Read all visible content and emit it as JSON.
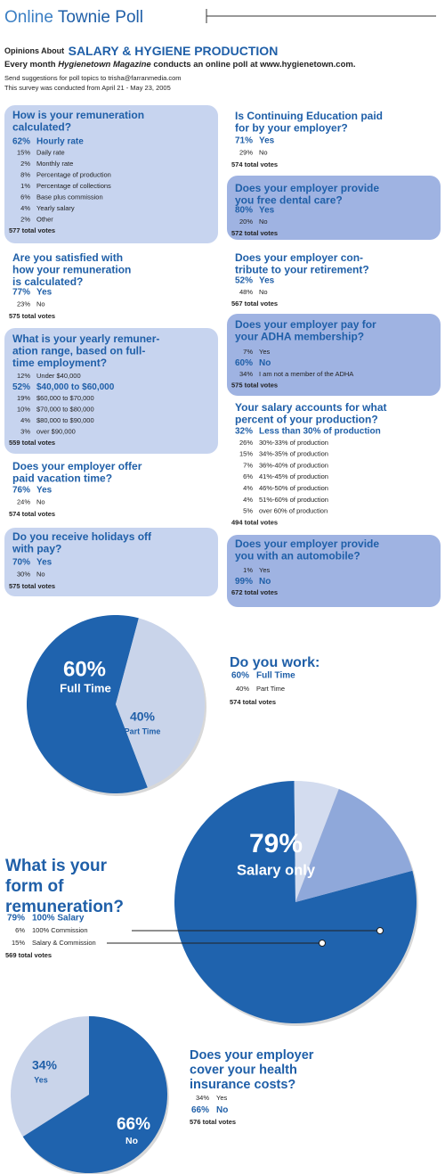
{
  "header": {
    "title_part1": "Online",
    "title_part2": "Townie Poll",
    "opinions_prefix": "Opinions About",
    "opinions_topic": "SALARY & HYGIENE PRODUCTION",
    "intro_part1": "Every month",
    "intro_part2": "Hygienetown Magazine",
    "intro_part3": "conducts an online poll at www.hygienetown.com.",
    "send": "Send suggestions for poll topics to trisha@farranmedia.com",
    "survey": "This survey was conducted from April 21 - May 23, 2005"
  },
  "polls": [
    {
      "question_lines": [
        "How is your remuneration",
        "calculated?"
      ],
      "options": [
        {
          "percent": "62%",
          "label": "Hourly rate",
          "highlight": true
        },
        {
          "percent": "15%",
          "label": "Daily rate"
        },
        {
          "percent": "2%",
          "label": "Monthly rate"
        },
        {
          "percent": "8%",
          "label": "Percentage of production"
        },
        {
          "percent": "1%",
          "label": "Percentage of collections"
        },
        {
          "percent": "6%",
          "label": "Base plus commission"
        },
        {
          "percent": "4%",
          "label": "Yearly salary"
        },
        {
          "percent": "2%",
          "label": "Other"
        }
      ],
      "total": "577 total votes"
    },
    {
      "question_lines": [
        "Are you satisfied with",
        "how your remuneration",
        "is calculated?"
      ],
      "options": [
        {
          "percent": "77%",
          "label": "Yes",
          "highlight": true
        },
        {
          "percent": "23%",
          "label": "No"
        }
      ],
      "total": "575 total votes"
    },
    {
      "question_lines": [
        "What is your yearly remuner-",
        "ation range, based on full-",
        "time employment?"
      ],
      "options": [
        {
          "percent": "12%",
          "label": "Under $40,000"
        },
        {
          "percent": "52%",
          "label": "$40,000 to $60,000",
          "highlight": true
        },
        {
          "percent": "19%",
          "label": "$60,000 to $70,000"
        },
        {
          "percent": "10%",
          "label": "$70,000 to $80,000"
        },
        {
          "percent": "4%",
          "label": "$80,000 to $90,000"
        },
        {
          "percent": "3%",
          "label": "over $90,000"
        }
      ],
      "total": "559 total votes"
    },
    {
      "question_lines": [
        "Does your employer offer",
        "paid vacation time?"
      ],
      "options": [
        {
          "percent": "76%",
          "label": "Yes",
          "highlight": true
        },
        {
          "percent": "24%",
          "label": "No"
        }
      ],
      "total": "574 total votes"
    },
    {
      "question_lines": [
        "Do you receive holidays off",
        "with pay?"
      ],
      "options": [
        {
          "percent": "70%",
          "label": "Yes",
          "highlight": true
        },
        {
          "percent": "30%",
          "label": "No"
        }
      ],
      "total": "575 total votes"
    },
    {
      "question_lines": [
        "Is Continuing Education paid",
        "for by your employer?"
      ],
      "options": [
        {
          "percent": "71%",
          "label": "Yes",
          "highlight": true
        },
        {
          "percent": "29%",
          "label": "No"
        }
      ],
      "total": "574 total votes"
    },
    {
      "question_lines": [
        "Does your employer provide",
        "you free dental care?"
      ],
      "options": [
        {
          "percent": "80%",
          "label": "Yes",
          "highlight": true
        },
        {
          "percent": "20%",
          "label": "No"
        }
      ],
      "total": "572 total votes"
    },
    {
      "question_lines": [
        "Does your employer con-",
        "tribute to your retirement?"
      ],
      "options": [
        {
          "percent": "52%",
          "label": "Yes",
          "highlight": true
        },
        {
          "percent": "48%",
          "label": "No"
        }
      ],
      "total": "567 total votes"
    },
    {
      "question_lines": [
        "Does your employer pay for",
        "your ADHA membership?"
      ],
      "options": [
        {
          "percent": "7%",
          "label": "Yes"
        },
        {
          "percent": "60%",
          "label": "No",
          "highlight": true
        },
        {
          "percent": "34%",
          "label": "I am not a member of the ADHA"
        }
      ],
      "total": "575 total votes"
    },
    {
      "question_lines": [
        "Your salary accounts for what",
        "percent of your production?"
      ],
      "options": [
        {
          "percent": "32%",
          "label": "Less than 30% of production",
          "highlight": true
        },
        {
          "percent": "26%",
          "label": "30%-33% of production"
        },
        {
          "percent": "15%",
          "label": "34%-35% of production"
        },
        {
          "percent": "7%",
          "label": "36%-40% of production"
        },
        {
          "percent": "6%",
          "label": "41%-45% of production"
        },
        {
          "percent": "4%",
          "label": "46%-50% of production"
        },
        {
          "percent": "4%",
          "label": "51%-60% of production"
        },
        {
          "percent": "5%",
          "label": "over 60% of production"
        }
      ],
      "total": "494 total votes"
    },
    {
      "question_lines": [
        "Does your employer provide",
        "you with an automobile?"
      ],
      "options": [
        {
          "percent": "1%",
          "label": "Yes"
        },
        {
          "percent": "99%",
          "label": "No",
          "highlight": true
        }
      ],
      "total": "672 total votes"
    },
    {
      "question_lines": [
        "Do you work:"
      ],
      "options": [
        {
          "percent": 60,
          "percent_label": "60%",
          "label": "Full Time",
          "highlight": true,
          "color": "#1f63ae"
        },
        {
          "percent": 40,
          "percent_label": "40%",
          "label": "Part Time",
          "color": "#c9d4ea"
        }
      ],
      "total": "574 total votes"
    },
    {
      "question_lines": [
        "What is your",
        "form of",
        "remuneration?"
      ],
      "options": [
        {
          "percent": 79,
          "percent_label": "79%",
          "label": "100% Salary",
          "highlight": true,
          "color": "#1f63ae"
        },
        {
          "percent": 6,
          "percent_label": "6%",
          "label": "100% Commission",
          "color": "#d3dcef"
        },
        {
          "percent": 15,
          "percent_label": "15%",
          "label": "Salary & Commission",
          "color": "#8fa8da"
        }
      ],
      "pie_label": "Salary only",
      "total": "569 total votes"
    },
    {
      "question_lines": [
        "Does your employer",
        "cover your health",
        "insurance costs?"
      ],
      "options": [
        {
          "percent": 34,
          "percent_label": "34%",
          "label": "Yes",
          "color": "#c9d4ea"
        },
        {
          "percent": 66,
          "percent_label": "66%",
          "label": "No",
          "highlight": true,
          "color": "#1f63ae"
        }
      ],
      "total": "576 total votes"
    }
  ]
}
